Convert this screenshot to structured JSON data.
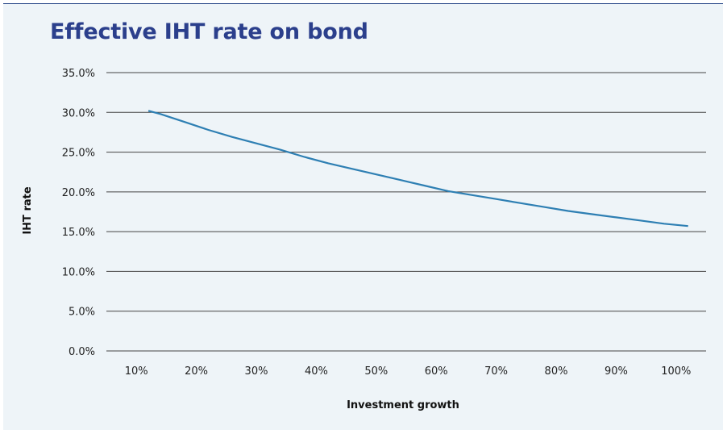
{
  "colors": {
    "line": "#2e7fb3",
    "grid": "#444444",
    "title": "#2b3f8c",
    "background": "#eef4f8"
  },
  "chart_data": {
    "type": "line",
    "title": "Effective IHT rate on bond",
    "xlabel": "Investment growth",
    "ylabel": "IHT rate",
    "categories": [
      "10%",
      "20%",
      "30%",
      "40%",
      "50%",
      "60%",
      "70%",
      "80%",
      "90%",
      "100%"
    ],
    "x": [
      12,
      14,
      18,
      22,
      26,
      30,
      34,
      38,
      42,
      46,
      50,
      54,
      58,
      62,
      66,
      70,
      74,
      78,
      82,
      86,
      90,
      94,
      98,
      102
    ],
    "series": [
      {
        "values": [
          30.2,
          29.8,
          28.8,
          27.8,
          26.9,
          26.1,
          25.3,
          24.4,
          23.6,
          22.9,
          22.2,
          21.5,
          20.8,
          20.1,
          19.6,
          19.1,
          18.6,
          18.1,
          17.6,
          17.2,
          16.8,
          16.4,
          16.0,
          15.7
        ]
      }
    ],
    "yticks": [
      "0.0%",
      "5.0%",
      "10.0%",
      "15.0%",
      "20.0%",
      "25.0%",
      "30.0%",
      "35.0%"
    ],
    "ylim": [
      0,
      35
    ],
    "grid": "horizontal",
    "legend": "none"
  }
}
